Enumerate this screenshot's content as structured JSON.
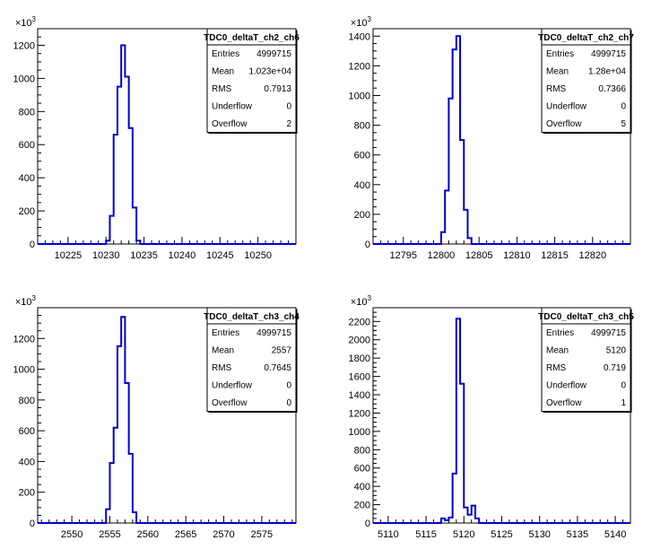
{
  "chart_data": [
    {
      "type": "histogram",
      "title": "TDC0_deltaT_ch2_ch6",
      "ylabel_multiplier": "×10³",
      "xlim": [
        10221,
        10255
      ],
      "ylim": [
        0,
        1300
      ],
      "xticks": [
        10225,
        10230,
        10235,
        10240,
        10245,
        10250
      ],
      "yticks": [
        0,
        200,
        400,
        600,
        800,
        1000,
        1200
      ],
      "bin_width": 0.5,
      "bins": [
        [
          10229.5,
          0
        ],
        [
          10230,
          20
        ],
        [
          10230.5,
          170
        ],
        [
          10231,
          660
        ],
        [
          10231.5,
          950
        ],
        [
          10232,
          1200
        ],
        [
          10232.5,
          1010
        ],
        [
          10233,
          700
        ],
        [
          10233.5,
          220
        ],
        [
          10234,
          20
        ],
        [
          10234.5,
          0
        ]
      ],
      "stats": {
        "Entries": "4999715",
        "Mean": "1.023e+04",
        "RMS": "0.7913",
        "Underflow": "0",
        "Overflow": "2"
      }
    },
    {
      "type": "histogram",
      "title": "TDC0_deltaT_ch2_ch7",
      "ylabel_multiplier": "×10³",
      "xlim": [
        12791,
        12825
      ],
      "ylim": [
        0,
        1450
      ],
      "xticks": [
        12795,
        12800,
        12805,
        12810,
        12815,
        12820
      ],
      "yticks": [
        0,
        200,
        400,
        600,
        800,
        1000,
        1200,
        1400
      ],
      "bin_width": 0.5,
      "bins": [
        [
          12799.5,
          0
        ],
        [
          12800,
          80
        ],
        [
          12800.5,
          360
        ],
        [
          12801,
          980
        ],
        [
          12801.5,
          1310
        ],
        [
          12802,
          1400
        ],
        [
          12802.5,
          700
        ],
        [
          12803,
          230
        ],
        [
          12803.5,
          40
        ],
        [
          12804,
          0
        ]
      ],
      "stats": {
        "Entries": "4999715",
        "Mean": "1.28e+04",
        "RMS": "0.7366",
        "Underflow": "0",
        "Overflow": "5"
      }
    },
    {
      "type": "histogram",
      "title": "TDC0_deltaT_ch3_ch4",
      "ylabel_multiplier": "×10³",
      "xlim": [
        2545.5,
        2579.5
      ],
      "ylim": [
        0,
        1400
      ],
      "xticks": [
        2550,
        2555,
        2560,
        2565,
        2570,
        2575
      ],
      "yticks": [
        0,
        200,
        400,
        600,
        800,
        1000,
        1200
      ],
      "bin_width": 0.5,
      "bins": [
        [
          2554,
          0
        ],
        [
          2554.5,
          90
        ],
        [
          2555,
          390
        ],
        [
          2555.5,
          620
        ],
        [
          2556,
          1150
        ],
        [
          2556.5,
          1340
        ],
        [
          2557,
          910
        ],
        [
          2557.5,
          450
        ],
        [
          2558,
          70
        ],
        [
          2558.5,
          0
        ]
      ],
      "stats": {
        "Entries": "4999715",
        "Mean": "2557",
        "RMS": "0.7645",
        "Underflow": "0",
        "Overflow": "0"
      }
    },
    {
      "type": "histogram",
      "title": "TDC0_deltaT_ch3_ch5",
      "ylabel_multiplier": "×10³",
      "xlim": [
        5108,
        5142
      ],
      "ylim": [
        0,
        2350
      ],
      "xticks": [
        5110,
        5115,
        5120,
        5125,
        5130,
        5135,
        5140
      ],
      "yticks": [
        0,
        200,
        400,
        600,
        800,
        1000,
        1200,
        1400,
        1600,
        1800,
        2000,
        2200
      ],
      "bin_width": 0.5,
      "bins": [
        [
          5116.5,
          0
        ],
        [
          5117,
          50
        ],
        [
          5117.5,
          30
        ],
        [
          5118,
          60
        ],
        [
          5118.5,
          540
        ],
        [
          5119,
          2230
        ],
        [
          5119.5,
          1520
        ],
        [
          5120,
          170
        ],
        [
          5120.5,
          90
        ],
        [
          5121,
          190
        ],
        [
          5121.5,
          50
        ],
        [
          5122,
          0
        ]
      ],
      "stats": {
        "Entries": "4999715",
        "Mean": "5120",
        "RMS": "0.719",
        "Underflow": "0",
        "Overflow": "1"
      }
    }
  ]
}
